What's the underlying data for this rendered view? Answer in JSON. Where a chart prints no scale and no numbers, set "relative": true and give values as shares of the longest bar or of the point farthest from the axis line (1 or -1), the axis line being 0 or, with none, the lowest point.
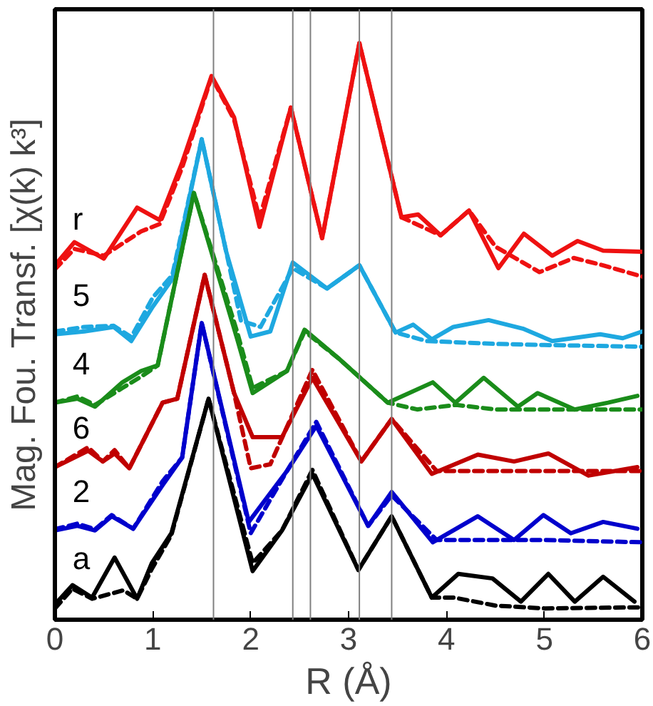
{
  "chart_data": {
    "type": "line",
    "relative": true,
    "xlabel": "R (Å)",
    "ylabel": "Mag. Fou. Transf. [χ(k) k³]",
    "xlim": [
      0,
      6
    ],
    "xticks": [
      0,
      1,
      2,
      3,
      4,
      5,
      6
    ],
    "grid": false,
    "series": [
      {
        "name": "r",
        "color": "#ee1111",
        "line_style": "solid",
        "x": [
          0,
          0.2,
          0.5,
          0.84,
          1.07,
          1.3,
          1.6,
          1.83,
          2.09,
          2.41,
          2.73,
          3.11,
          3.54,
          3.71,
          3.94,
          4.23,
          4.53,
          4.79,
          5.08,
          5.34,
          5.6,
          6.0
        ],
        "values": [
          0.607,
          0.648,
          0.619,
          0.709,
          0.687,
          0.789,
          0.942,
          0.869,
          0.675,
          0.886,
          0.655,
          1.0,
          0.692,
          0.697,
          0.66,
          0.704,
          0.602,
          0.663,
          0.624,
          0.65,
          0.633,
          0.631
        ]
      },
      {
        "color": "#ee1111",
        "line_style": "dashed",
        "x": [
          0,
          0.2,
          0.5,
          0.88,
          1.07,
          1.3,
          1.6,
          1.83,
          2.09,
          2.41,
          2.73,
          3.11,
          3.54,
          3.94,
          4.23,
          4.5,
          4.7,
          4.95,
          5.3,
          5.6,
          6.0
        ],
        "values": [
          0.6,
          0.636,
          0.624,
          0.667,
          0.68,
          0.78,
          0.94,
          0.865,
          0.69,
          0.886,
          0.655,
          1.0,
          0.692,
          0.66,
          0.704,
          0.64,
          0.62,
          0.595,
          0.62,
          0.607,
          0.587
        ]
      },
      {
        "name": "5",
        "color": "#1ea8e0",
        "line_style": "solid",
        "x": [
          0,
          0.3,
          0.6,
          0.78,
          1.0,
          1.2,
          1.5,
          1.75,
          2.0,
          2.2,
          2.43,
          2.78,
          3.11,
          3.48,
          3.66,
          3.85,
          4.07,
          4.43,
          4.78,
          5.08,
          5.57,
          5.8,
          6.0
        ],
        "values": [
          0.485,
          0.49,
          0.498,
          0.473,
          0.534,
          0.583,
          0.83,
          0.631,
          0.481,
          0.49,
          0.612,
          0.566,
          0.607,
          0.488,
          0.502,
          0.476,
          0.498,
          0.51,
          0.495,
          0.473,
          0.485,
          0.478,
          0.49
        ]
      },
      {
        "color": "#1ea8e0",
        "line_style": "dashed",
        "x": [
          0,
          0.3,
          0.6,
          0.78,
          1.0,
          1.2,
          1.5,
          1.75,
          1.9,
          2.1,
          2.43,
          2.78,
          3.11,
          3.48,
          3.8,
          4.5,
          5.0,
          6.0
        ],
        "values": [
          0.49,
          0.498,
          0.5,
          0.48,
          0.55,
          0.59,
          0.83,
          0.631,
          0.509,
          0.498,
          0.602,
          0.566,
          0.607,
          0.488,
          0.473,
          0.468,
          0.466,
          0.463
        ]
      },
      {
        "name": "4",
        "color": "#1a8c1a",
        "line_style": "solid",
        "x": [
          0,
          0.23,
          0.41,
          0.69,
          0.88,
          1.05,
          1.42,
          1.86,
          2.02,
          2.37,
          2.55,
          2.9,
          3.4,
          3.86,
          4.09,
          4.38,
          4.73,
          4.93,
          5.31,
          5.65,
          5.95
        ],
        "values": [
          0.364,
          0.371,
          0.357,
          0.4,
          0.42,
          0.43,
          0.735,
          0.478,
          0.381,
          0.42,
          0.493,
          0.442,
          0.364,
          0.4,
          0.364,
          0.408,
          0.357,
          0.381,
          0.352,
          0.364,
          0.376
        ]
      },
      {
        "color": "#1a8c1a",
        "line_style": "dashed",
        "x": [
          0,
          0.23,
          0.41,
          0.69,
          0.88,
          1.05,
          1.42,
          1.86,
          2.02,
          2.37,
          2.55,
          2.9,
          3.4,
          3.7,
          4.1,
          4.5,
          5.0,
          6.0
        ],
        "values": [
          0.364,
          0.375,
          0.36,
          0.39,
          0.41,
          0.43,
          0.735,
          0.49,
          0.39,
          0.42,
          0.49,
          0.442,
          0.364,
          0.352,
          0.36,
          0.352,
          0.352,
          0.352
        ]
      },
      {
        "name": "6",
        "color": "#c00000",
        "line_style": "solid",
        "x": [
          0,
          0.34,
          0.49,
          0.61,
          0.76,
          1.1,
          1.25,
          1.53,
          1.83,
          2.02,
          2.32,
          2.63,
          3.13,
          3.44,
          3.85,
          4.32,
          4.69,
          5.04,
          5.45,
          5.95
        ],
        "values": [
          0.25,
          0.279,
          0.26,
          0.274,
          0.248,
          0.364,
          0.371,
          0.59,
          0.381,
          0.303,
          0.303,
          0.408,
          0.26,
          0.335,
          0.238,
          0.272,
          0.26,
          0.274,
          0.235,
          0.25
        ]
      },
      {
        "color": "#c00000",
        "line_style": "dashed",
        "x": [
          0,
          0.34,
          0.49,
          0.61,
          0.76,
          1.1,
          1.25,
          1.53,
          1.83,
          2.0,
          2.2,
          2.63,
          3.13,
          3.44,
          3.9,
          4.5,
          5.0,
          6.0
        ],
        "values": [
          0.25,
          0.285,
          0.26,
          0.28,
          0.248,
          0.364,
          0.371,
          0.59,
          0.381,
          0.248,
          0.255,
          0.422,
          0.26,
          0.335,
          0.243,
          0.243,
          0.243,
          0.243
        ]
      },
      {
        "name": "2",
        "color": "#0000cc",
        "line_style": "solid",
        "x": [
          0,
          0.23,
          0.41,
          0.58,
          0.8,
          1.1,
          1.3,
          1.5,
          1.98,
          2.37,
          2.67,
          3.2,
          3.44,
          3.86,
          4.32,
          4.69,
          4.99,
          5.27,
          5.6,
          5.95
        ],
        "values": [
          0.138,
          0.146,
          0.138,
          0.163,
          0.141,
          0.218,
          0.267,
          0.505,
          0.153,
          0.243,
          0.323,
          0.146,
          0.206,
          0.117,
          0.163,
          0.121,
          0.165,
          0.133,
          0.153,
          0.141
        ]
      },
      {
        "color": "#0000cc",
        "line_style": "dashed",
        "x": [
          0,
          0.23,
          0.41,
          0.58,
          0.8,
          1.1,
          1.3,
          1.5,
          2.0,
          2.37,
          2.67,
          3.2,
          3.44,
          3.9,
          4.5,
          5.0,
          6.0
        ],
        "values": [
          0.14,
          0.15,
          0.14,
          0.165,
          0.141,
          0.225,
          0.267,
          0.505,
          0.133,
          0.243,
          0.33,
          0.146,
          0.2,
          0.121,
          0.121,
          0.121,
          0.117
        ]
      },
      {
        "name": "a",
        "color": "#000000",
        "line_style": "solid",
        "x": [
          0,
          0.18,
          0.38,
          0.61,
          0.84,
          0.99,
          1.19,
          1.57,
          2.02,
          2.32,
          2.63,
          3.1,
          3.44,
          3.85,
          4.12,
          4.47,
          4.76,
          5.04,
          5.31,
          5.6,
          5.92
        ],
        "values": [
          0.007,
          0.041,
          0.019,
          0.09,
          0.017,
          0.08,
          0.133,
          0.371,
          0.066,
          0.138,
          0.238,
          0.068,
          0.163,
          0.019,
          0.061,
          0.053,
          0.012,
          0.061,
          0.012,
          0.056,
          0.012
        ]
      },
      {
        "color": "#000000",
        "line_style": "dashed",
        "x": [
          0,
          0.18,
          0.38,
          0.7,
          0.84,
          0.99,
          1.19,
          1.57,
          2.02,
          2.32,
          2.63,
          3.1,
          3.44,
          3.85,
          4.08,
          4.5,
          5.0,
          6.0
        ],
        "values": [
          0.0,
          0.035,
          0.017,
          0.032,
          0.017,
          0.07,
          0.13,
          0.371,
          0.08,
          0.138,
          0.245,
          0.068,
          0.163,
          0.019,
          0.019,
          0.005,
          0.0,
          0.002
        ]
      }
    ],
    "ref_lines": [
      {
        "axis": "x",
        "value": 1.62,
        "color": "#808080"
      },
      {
        "axis": "x",
        "value": 2.43,
        "color": "#808080"
      },
      {
        "axis": "x",
        "value": 3.11,
        "color": "#808080"
      },
      {
        "axis": "x",
        "value": 2.61,
        "color": "#808080"
      },
      {
        "axis": "x",
        "value": 3.44,
        "color": "#808080"
      }
    ]
  }
}
